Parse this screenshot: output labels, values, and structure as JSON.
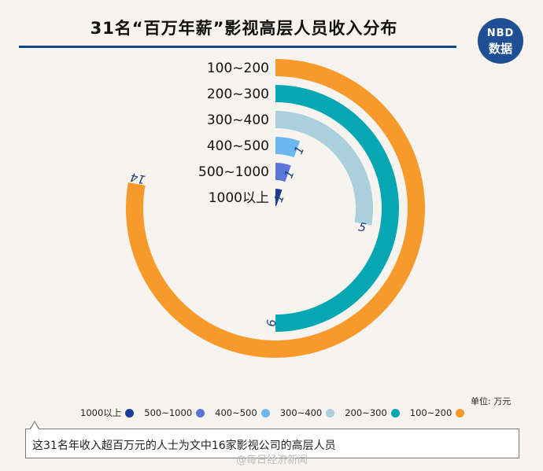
{
  "header": {
    "title": "31名“百万年薪”影视高层人员收入分布",
    "logo_line1": "NBD",
    "logo_line2": "数据"
  },
  "chart_data": {
    "type": "radial-bar",
    "title": "31名“百万年薪”影视高层人员收入分布",
    "unit_label": "单位: 万元",
    "max_value": 18,
    "categories": [
      "100~200",
      "200~300",
      "300~400",
      "400~500",
      "500~1000",
      "1000以上"
    ],
    "values": [
      14,
      9,
      5,
      1,
      1,
      1
    ],
    "value_labels": [
      "14",
      "9",
      "5",
      "1",
      "1",
      "1"
    ],
    "colors": [
      "#f7992b",
      "#06a6b3",
      "#a9d0dc",
      "#6cb8ee",
      "#5a76d9",
      "#1c3c9a"
    ],
    "legend_order": [
      "1000以上",
      "500~1000",
      "400~500",
      "300~400",
      "200~300",
      "100~200"
    ],
    "legend_colors": [
      "#1c3c9a",
      "#5a76d9",
      "#6cb8ee",
      "#a9d0dc",
      "#06a6b3",
      "#f7992b"
    ],
    "legend_position": "bottom"
  },
  "note": {
    "text": "这31名年收入超百万元的人士为文中16家影视公司的高层人员"
  },
  "watermark": "@每日经济新闻"
}
